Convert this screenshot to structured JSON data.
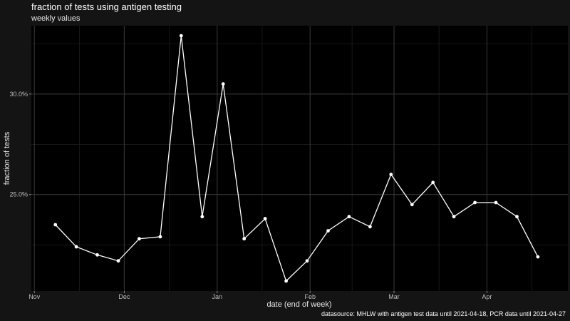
{
  "chart_data": {
    "type": "line",
    "title": "fraction of tests using antigen testing",
    "subtitle": "weekly values",
    "xlabel": "date (end of week)",
    "ylabel": "fraction of tests",
    "caption": "datasource: MHLW with antigen test data until 2021-04-18, PCR data until 2021-04-27",
    "x_ticks": [
      "Nov",
      "Dec",
      "Jan",
      "Feb",
      "Mar",
      "Apr"
    ],
    "x_tick_dates": [
      "2020-11-01",
      "2020-12-01",
      "2021-01-01",
      "2021-02-01",
      "2021-03-01",
      "2021-04-01"
    ],
    "y_ticks": [
      "25.0%",
      "30.0%"
    ],
    "y_tick_values": [
      25.0,
      30.0
    ],
    "xlim": [
      "2020-10-31",
      "2021-04-28"
    ],
    "ylim": [
      20.2,
      33.4
    ],
    "grid": true,
    "line_color": "#ffffff",
    "series": [
      {
        "x": [
          "2020-11-08",
          "2020-11-15",
          "2020-11-22",
          "2020-11-29",
          "2020-12-06",
          "2020-12-13",
          "2020-12-20",
          "2020-12-27",
          "2021-01-03",
          "2021-01-10",
          "2021-01-17",
          "2021-01-24",
          "2021-01-31",
          "2021-02-07",
          "2021-02-14",
          "2021-02-21",
          "2021-02-28",
          "2021-03-07",
          "2021-03-14",
          "2021-03-21",
          "2021-03-28",
          "2021-04-04",
          "2021-04-11",
          "2021-04-18"
        ],
        "values": [
          23.5,
          22.4,
          22.0,
          21.7,
          22.8,
          22.9,
          32.9,
          23.9,
          30.5,
          22.8,
          23.8,
          20.7,
          21.7,
          23.2,
          23.9,
          23.4,
          26.0,
          24.5,
          25.6,
          23.9,
          24.6,
          24.6,
          23.9,
          21.9
        ]
      }
    ]
  }
}
